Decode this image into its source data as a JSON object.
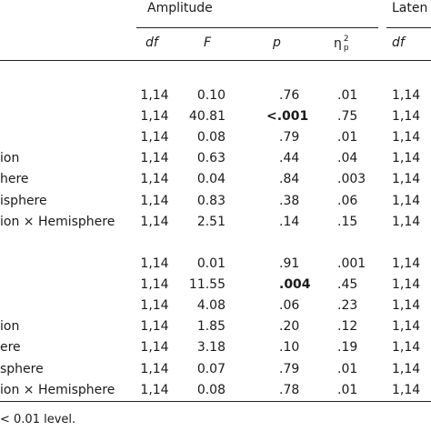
{
  "header": {
    "group_1": "Amplitude",
    "group_2": "Laten"
  },
  "columns": [
    "df",
    "F",
    "p",
    {
      "base": "η",
      "sup": "2",
      "sub": "p"
    },
    "df"
  ],
  "table": {
    "groups": [
      {
        "rows": [
          {
            "label": null,
            "cells": [
              "1,14",
              "0.10",
              ".76",
              ".01",
              "1,14"
            ]
          },
          {
            "label": null,
            "cells": [
              "1,14",
              "40.81",
              "<.001",
              ".75",
              "1,14"
            ],
            "bold_cell": 2
          },
          {
            "label": null,
            "cells": [
              "1,14",
              "0.08",
              ".79",
              ".01",
              "1,14"
            ]
          },
          {
            "label": "ion",
            "cells": [
              "1,14",
              "0.63",
              ".44",
              ".04",
              "1,14"
            ]
          },
          {
            "label": "here",
            "cells": [
              "1,14",
              "0.04",
              ".84",
              ".003",
              "1,14"
            ]
          },
          {
            "label": "isphere",
            "cells": [
              "1,14",
              "0.83",
              ".38",
              ".06",
              "1,14"
            ]
          },
          {
            "label": "ion × Hemisphere",
            "cells": [
              "1,14",
              "2.51",
              ".14",
              ".15",
              "1,14"
            ]
          }
        ]
      },
      {
        "rows": [
          {
            "label": null,
            "cells": [
              "1,14",
              "0.01",
              ".91",
              ".001",
              "1,14"
            ]
          },
          {
            "label": null,
            "cells": [
              "1,14",
              "11.55",
              ".004",
              ".45",
              "1,14"
            ],
            "bold_cell": 2
          },
          {
            "label": null,
            "cells": [
              "1,14",
              "4.08",
              ".06",
              ".23",
              "1,14"
            ]
          },
          {
            "label": "ion",
            "cells": [
              "1,14",
              "1.85",
              ".20",
              ".12",
              "1,14"
            ]
          },
          {
            "label": "ere",
            "cells": [
              "1,14",
              "3.18",
              ".10",
              ".19",
              "1,14"
            ]
          },
          {
            "label": "sphere",
            "cells": [
              "1,14",
              "0.07",
              ".79",
              ".01",
              "1,14"
            ]
          },
          {
            "label": "ion × Hemisphere",
            "cells": [
              "1,14",
              "0.08",
              ".78",
              ".01",
              "1,14"
            ]
          }
        ]
      }
    ]
  },
  "footer": "< 0.01 level."
}
